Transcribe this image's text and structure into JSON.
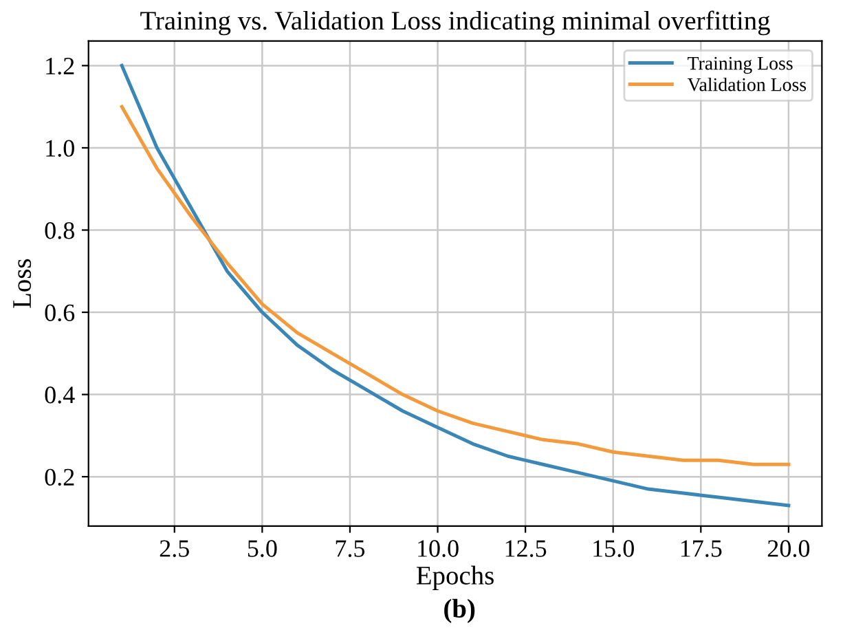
{
  "chart_data": {
    "type": "line",
    "title": "Training vs. Validation Loss indicating minimal overfitting",
    "xlabel": "Epochs",
    "ylabel": "Loss",
    "x": [
      1,
      2,
      3,
      4,
      5,
      6,
      7,
      8,
      9,
      10,
      11,
      12,
      13,
      14,
      15,
      16,
      17,
      18,
      19,
      20
    ],
    "series": [
      {
        "name": "Training Loss",
        "color": "#3a87b5",
        "values": [
          1.2,
          1.0,
          0.85,
          0.7,
          0.6,
          0.52,
          0.46,
          0.41,
          0.36,
          0.32,
          0.28,
          0.25,
          0.23,
          0.21,
          0.19,
          0.17,
          0.16,
          0.15,
          0.14,
          0.13
        ]
      },
      {
        "name": "Validation Loss",
        "color": "#f39a3c",
        "values": [
          1.1,
          0.95,
          0.83,
          0.72,
          0.62,
          0.55,
          0.5,
          0.45,
          0.4,
          0.36,
          0.33,
          0.31,
          0.29,
          0.28,
          0.26,
          0.25,
          0.24,
          0.24,
          0.23,
          0.23
        ]
      }
    ],
    "xlim": [
      0.05,
      20.95
    ],
    "ylim": [
      0.08,
      1.26
    ],
    "xticks": [
      {
        "value": 2.5,
        "label": "2.5"
      },
      {
        "value": 5,
        "label": "5.0"
      },
      {
        "value": 7.5,
        "label": "7.5"
      },
      {
        "value": 10,
        "label": "10.0"
      },
      {
        "value": 12.5,
        "label": "12.5"
      },
      {
        "value": 15,
        "label": "15.0"
      },
      {
        "value": 17.5,
        "label": "17.5"
      },
      {
        "value": 20,
        "label": "20.0"
      }
    ],
    "yticks": [
      0.2,
      0.4,
      0.6,
      0.8,
      {
        "value": 1.0,
        "label": "1.0"
      },
      1.2
    ],
    "grid": true,
    "legend": "top right",
    "marker": "none",
    "line_style": "solid",
    "annotations": [
      "(b)"
    ]
  }
}
